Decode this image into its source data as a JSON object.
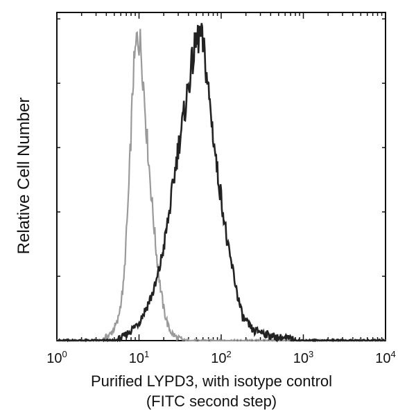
{
  "chart_data": {
    "type": "histogram-line",
    "xscale": "log",
    "xlim": [
      1,
      10000
    ],
    "ylim": [
      0,
      100
    ],
    "x_ticks": [
      {
        "base": "10",
        "exp": "0",
        "value": 1
      },
      {
        "base": "10",
        "exp": "1",
        "value": 10
      },
      {
        "base": "10",
        "exp": "2",
        "value": 100
      },
      {
        "base": "10",
        "exp": "3",
        "value": 1000
      },
      {
        "base": "10",
        "exp": "4",
        "value": 10000
      }
    ],
    "xlabel_line1": "Purified LYPD3, with isotype control",
    "xlabel_line2": "(FITC second step)",
    "ylabel": "Relative Cell Number",
    "grid": false,
    "series": [
      {
        "role": "isotype-control",
        "color": "#9a9a9a",
        "x": [
          1,
          3.5,
          4.5,
          5.5,
          6.5,
          7.5,
          8.5,
          9.5,
          10.5,
          11.5,
          12.5,
          14,
          16,
          18,
          20,
          23,
          26,
          30,
          40,
          100,
          1000,
          10000
        ],
        "y": [
          0,
          0,
          2,
          6,
          18,
          48,
          85,
          98,
          95,
          80,
          65,
          48,
          30,
          18,
          10,
          4,
          2,
          0.5,
          0,
          0,
          0,
          0
        ]
      },
      {
        "role": "LYPD3",
        "color": "#222222",
        "x": [
          1,
          5,
          6,
          7,
          8.5,
          10,
          12,
          14,
          16,
          18,
          20,
          23,
          26,
          30,
          35,
          40,
          45,
          50,
          55,
          60,
          65,
          70,
          80,
          90,
          100,
          110,
          120,
          140,
          160,
          180,
          200,
          250,
          300,
          400,
          500,
          700,
          900,
          10000
        ],
        "y": [
          0,
          0,
          0.5,
          2,
          4,
          6,
          10,
          14,
          18,
          24,
          30,
          40,
          50,
          62,
          72,
          82,
          90,
          96,
          98,
          95,
          88,
          80,
          66,
          54,
          46,
          38,
          30,
          22,
          14,
          8,
          6,
          3,
          3,
          1.5,
          1,
          0.5,
          0,
          0
        ]
      }
    ]
  }
}
